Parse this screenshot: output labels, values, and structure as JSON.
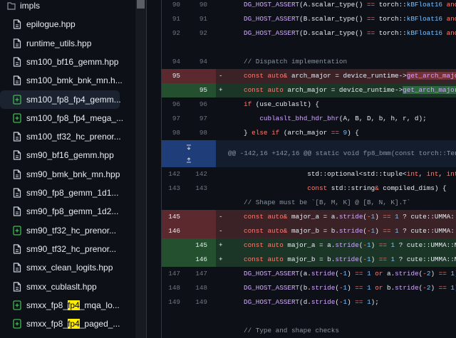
{
  "sidebar": {
    "folder": "impls",
    "files": [
      {
        "label": "epilogue.hpp",
        "status": "file"
      },
      {
        "label": "runtime_utils.hpp",
        "status": "file"
      },
      {
        "label": "sm100_bf16_gemm.hpp",
        "status": "file"
      },
      {
        "label": "sm100_bmk_bnk_mn.h...",
        "status": "file"
      },
      {
        "label": "sm100_fp8_fp4_gemm...",
        "status": "added",
        "selected": true
      },
      {
        "label": "sm100_fp8_fp4_mega_...",
        "status": "added"
      },
      {
        "label": "sm100_tf32_hc_prenor...",
        "status": "file"
      },
      {
        "label": "sm90_bf16_gemm.hpp",
        "status": "file"
      },
      {
        "label": "sm90_bmk_bnk_mn.hpp",
        "status": "file"
      },
      {
        "label": "sm90_fp8_gemm_1d1...",
        "status": "file"
      },
      {
        "label": "sm90_fp8_gemm_1d2...",
        "status": "file"
      },
      {
        "label": "sm90_tf32_hc_prenor...",
        "status": "added"
      },
      {
        "label": "sm90_tf32_hc_prenor...",
        "status": "file"
      },
      {
        "label": "smxx_clean_logits.hpp",
        "status": "file"
      },
      {
        "label": "smxx_cublaslt.hpp",
        "status": "file"
      },
      {
        "label_parts": [
          "smxx_fp8_",
          "fp4",
          "_mqa_lo..."
        ],
        "status": "added"
      },
      {
        "label_parts": [
          "smxx_fp8_",
          "fp4",
          "_paged_..."
        ],
        "status": "added"
      }
    ]
  },
  "diff": {
    "rows": [
      {
        "type": "ctx",
        "old": 90,
        "new": 90,
        "tokens": [
          [
            "DG_HOST_ASSERT",
            "f"
          ],
          [
            "(A.scalar_type() ",
            "p"
          ],
          [
            "==",
            "k"
          ],
          [
            " torch::",
            "p"
          ],
          [
            "kBFloat16",
            "c"
          ],
          [
            " and",
            "k"
          ]
        ]
      },
      {
        "type": "ctx",
        "old": 91,
        "new": 91,
        "tokens": [
          [
            "DG_HOST_ASSERT",
            "f"
          ],
          [
            "(B.scalar_type() ",
            "p"
          ],
          [
            "==",
            "k"
          ],
          [
            " torch::",
            "p"
          ],
          [
            "kBFloat16",
            "c"
          ],
          [
            " and",
            "k"
          ]
        ]
      },
      {
        "type": "ctx",
        "old": 92,
        "new": 92,
        "tokens": [
          [
            "DG_HOST_ASSERT",
            "f"
          ],
          [
            "(D.scalar_type() ",
            "p"
          ],
          [
            "==",
            "k"
          ],
          [
            " torch::",
            "p"
          ],
          [
            "kBFloat16",
            "c"
          ],
          [
            " and",
            "k"
          ]
        ]
      },
      {
        "type": "ctx",
        "tokens": []
      },
      {
        "type": "ctx",
        "old": 94,
        "new": 94,
        "tokens": [
          [
            "// Dispatch implementation",
            "m"
          ]
        ]
      },
      {
        "type": "del",
        "old": 95,
        "sign": "-",
        "tokens": [
          [
            "const auto",
            "k"
          ],
          [
            "&",
            "k"
          ],
          [
            " arch_major = device_runtime->",
            "p"
          ],
          [
            "get_arch_major",
            "fd"
          ]
        ]
      },
      {
        "type": "add",
        "new": 95,
        "sign": "+",
        "tokens": [
          [
            "const auto",
            "k"
          ],
          [
            " arch_major = device_runtime->",
            "p"
          ],
          [
            "get_arch_major",
            "fa"
          ],
          [
            "(",
            "p"
          ]
        ]
      },
      {
        "type": "ctx",
        "old": 96,
        "new": 96,
        "tokens": [
          [
            "if",
            "k"
          ],
          [
            " (use_cublaslt) {",
            "p"
          ]
        ]
      },
      {
        "type": "ctx",
        "old": 97,
        "new": 97,
        "tokens": [
          [
            "    ",
            "p"
          ],
          [
            "cublaslt_bhd_hdr_bhr",
            "f"
          ],
          [
            "(A, B, D, b, h, r, d);",
            "p"
          ]
        ]
      },
      {
        "type": "ctx",
        "old": 98,
        "new": 98,
        "tokens": [
          [
            "} ",
            "p"
          ],
          [
            "else if",
            "k"
          ],
          [
            " (arch_major ",
            "p"
          ],
          [
            "==",
            "k"
          ],
          [
            " ",
            "p"
          ],
          [
            "9",
            "c"
          ],
          [
            ") {",
            "p"
          ]
        ]
      },
      {
        "type": "hunk",
        "text": "@@ -142,16 +142,16 @@ static void fp8_bmm(const torch::Tens"
      },
      {
        "type": "ctx",
        "old": 142,
        "new": 142,
        "tokens": [
          [
            "                std::optional<std::tuple<",
            "p"
          ],
          [
            "int",
            "k"
          ],
          [
            ", ",
            "p"
          ],
          [
            "int",
            "k"
          ],
          [
            ", ",
            "p"
          ],
          [
            "int",
            "k"
          ]
        ]
      },
      {
        "type": "ctx",
        "old": 143,
        "new": 143,
        "tokens": [
          [
            "                ",
            "p"
          ],
          [
            "const",
            "k"
          ],
          [
            " std::string",
            "p"
          ],
          [
            "&",
            "k"
          ],
          [
            " compiled_dims) {",
            "p"
          ]
        ]
      },
      {
        "type": "ctx",
        "tokens": [
          [
            "// Shape must be `[B, M, K] @ [B, N, K].T`",
            "m"
          ]
        ]
      },
      {
        "type": "del",
        "old": 145,
        "sign": "-",
        "tokens": [
          [
            "const auto",
            "k"
          ],
          [
            "&",
            "k"
          ],
          [
            " major_a = a.",
            "p"
          ],
          [
            "stride",
            "f"
          ],
          [
            "(",
            "p"
          ],
          [
            "-",
            "k"
          ],
          [
            "1",
            "c"
          ],
          [
            ") ",
            "p"
          ],
          [
            "==",
            "k"
          ],
          [
            " ",
            "p"
          ],
          [
            "1",
            "c"
          ],
          [
            " ? cute::UMMA::M",
            "p"
          ]
        ]
      },
      {
        "type": "del",
        "old": 146,
        "sign": "-",
        "tokens": [
          [
            "const auto",
            "k"
          ],
          [
            "&",
            "k"
          ],
          [
            " major_b = b.",
            "p"
          ],
          [
            "stride",
            "f"
          ],
          [
            "(",
            "p"
          ],
          [
            "-",
            "k"
          ],
          [
            "1",
            "c"
          ],
          [
            ") ",
            "p"
          ],
          [
            "==",
            "k"
          ],
          [
            " ",
            "p"
          ],
          [
            "1",
            "c"
          ],
          [
            " ? cute::UMMA::M",
            "p"
          ]
        ]
      },
      {
        "type": "add",
        "new": 145,
        "sign": "+",
        "tokens": [
          [
            "const auto",
            "k"
          ],
          [
            " major_a = a.",
            "p"
          ],
          [
            "stride",
            "f"
          ],
          [
            "(",
            "p"
          ],
          [
            "-",
            "k"
          ],
          [
            "1",
            "c"
          ],
          [
            ") ",
            "p"
          ],
          [
            "==",
            "k"
          ],
          [
            " ",
            "p"
          ],
          [
            "1",
            "c"
          ],
          [
            " ? cute::UMMA::Ma",
            "p"
          ]
        ]
      },
      {
        "type": "add",
        "new": 146,
        "sign": "+",
        "tokens": [
          [
            "const auto",
            "k"
          ],
          [
            " major_b = b.",
            "p"
          ],
          [
            "stride",
            "f"
          ],
          [
            "(",
            "p"
          ],
          [
            "-",
            "k"
          ],
          [
            "1",
            "c"
          ],
          [
            ") ",
            "p"
          ],
          [
            "==",
            "k"
          ],
          [
            " ",
            "p"
          ],
          [
            "1",
            "c"
          ],
          [
            " ? cute::UMMA::Ma",
            "p"
          ]
        ]
      },
      {
        "type": "ctx",
        "old": 147,
        "new": 147,
        "tokens": [
          [
            "DG_HOST_ASSERT",
            "f"
          ],
          [
            "(a.",
            "p"
          ],
          [
            "stride",
            "f"
          ],
          [
            "(",
            "p"
          ],
          [
            "-",
            "k"
          ],
          [
            "1",
            "c"
          ],
          [
            ") ",
            "p"
          ],
          [
            "==",
            "k"
          ],
          [
            " ",
            "p"
          ],
          [
            "1",
            "c"
          ],
          [
            " ",
            "p"
          ],
          [
            "or",
            "k"
          ],
          [
            " a.",
            "p"
          ],
          [
            "stride",
            "f"
          ],
          [
            "(",
            "p"
          ],
          [
            "-",
            "k"
          ],
          [
            "2",
            "c"
          ],
          [
            ") ",
            "p"
          ],
          [
            "==",
            "k"
          ],
          [
            " ",
            "p"
          ],
          [
            "1",
            "c"
          ],
          [
            ");",
            "p"
          ]
        ]
      },
      {
        "type": "ctx",
        "old": 148,
        "new": 148,
        "tokens": [
          [
            "DG_HOST_ASSERT",
            "f"
          ],
          [
            "(b.",
            "p"
          ],
          [
            "stride",
            "f"
          ],
          [
            "(",
            "p"
          ],
          [
            "-",
            "k"
          ],
          [
            "1",
            "c"
          ],
          [
            ") ",
            "p"
          ],
          [
            "==",
            "k"
          ],
          [
            " ",
            "p"
          ],
          [
            "1",
            "c"
          ],
          [
            " ",
            "p"
          ],
          [
            "or",
            "k"
          ],
          [
            " b.",
            "p"
          ],
          [
            "stride",
            "f"
          ],
          [
            "(",
            "p"
          ],
          [
            "-",
            "k"
          ],
          [
            "2",
            "c"
          ],
          [
            ") ",
            "p"
          ],
          [
            "==",
            "k"
          ],
          [
            " ",
            "p"
          ],
          [
            "1",
            "c"
          ],
          [
            ");",
            "p"
          ]
        ]
      },
      {
        "type": "ctx",
        "old": 149,
        "new": 149,
        "tokens": [
          [
            "DG_HOST_ASSERT",
            "f"
          ],
          [
            "(d.",
            "p"
          ],
          [
            "stride",
            "f"
          ],
          [
            "(",
            "p"
          ],
          [
            "-",
            "k"
          ],
          [
            "1",
            "c"
          ],
          [
            ") ",
            "p"
          ],
          [
            "==",
            "k"
          ],
          [
            " ",
            "p"
          ],
          [
            "1",
            "c"
          ],
          [
            ");",
            "p"
          ]
        ]
      },
      {
        "type": "ctx",
        "tokens": []
      },
      {
        "type": "ctx",
        "tokens": [
          [
            "// Type and shape checks",
            "m"
          ]
        ]
      }
    ]
  }
}
